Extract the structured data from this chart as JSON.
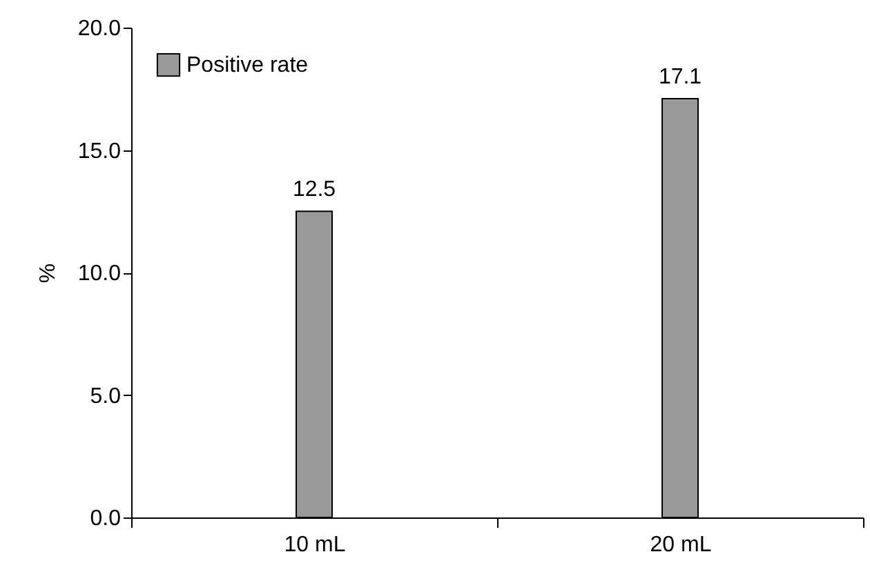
{
  "chart_data": {
    "type": "bar",
    "categories": [
      "10 mL",
      "20 mL"
    ],
    "ylabel": "%",
    "series": [
      {
        "name": "Positive rate",
        "color": "#999999",
        "values": [
          12.5,
          17.1
        ]
      }
    ],
    "ylim": [
      0,
      20
    ],
    "yticks": [
      {
        "value": 0,
        "label": "0.0"
      },
      {
        "value": 5,
        "label": "5.0"
      },
      {
        "value": 10,
        "label": "10.0"
      },
      {
        "value": 15,
        "label": "15.0"
      },
      {
        "value": 20,
        "label": "20.0"
      }
    ],
    "data_labels": true,
    "grid": false,
    "legend": "top left"
  }
}
